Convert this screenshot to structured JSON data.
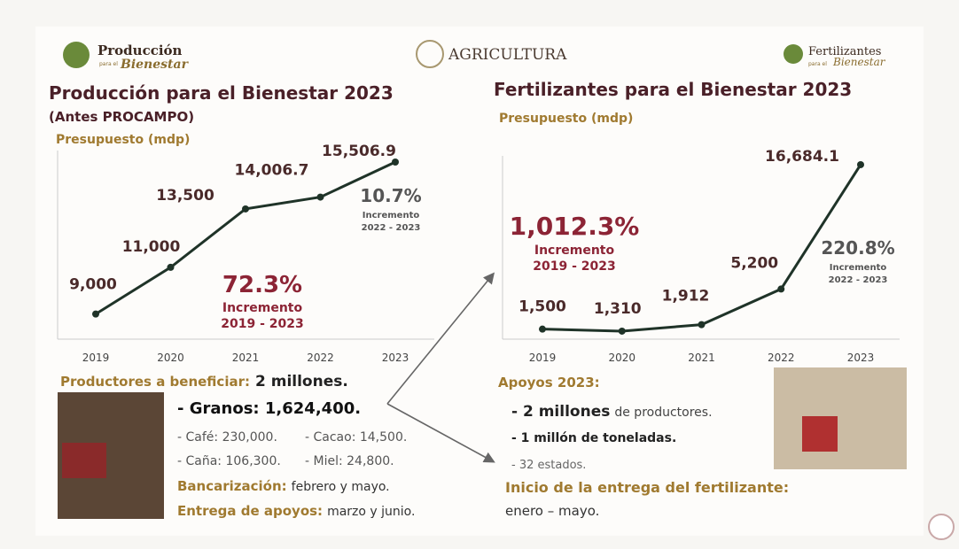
{
  "logos": {
    "left_top": "Producción",
    "left_small": "para el",
    "left_bottom": "Bienestar",
    "center": "AGRICULTURA",
    "right_top": "Fertilizantes",
    "right_small": "para el",
    "right_bottom": "Bienestar"
  },
  "chart_data": [
    {
      "type": "line",
      "title": "Producción para el Bienestar 2023",
      "subtitle": "(Antes PROCAMPO)",
      "y_label": "Presupuesto (mdp)",
      "categories": [
        "2019",
        "2020",
        "2021",
        "2022",
        "2023"
      ],
      "values": [
        9000,
        11000,
        13500,
        14006.7,
        15506.9
      ],
      "value_labels": [
        "9,000",
        "11,000",
        "13,500",
        "14,006.7",
        "15,506.9"
      ],
      "color": "#1f3328",
      "ylim": [
        8000,
        16000
      ],
      "annotations": [
        {
          "value": "72.3%",
          "label": "Incremento",
          "period": "2019 - 2023"
        },
        {
          "value": "10.7%",
          "label": "Incremento",
          "period": "2022 - 2023"
        }
      ]
    },
    {
      "type": "line",
      "title": "Fertilizantes para el Bienestar 2023",
      "y_label": "Presupuesto (mdp)",
      "categories": [
        "2019",
        "2020",
        "2021",
        "2022",
        "2023"
      ],
      "values": [
        1500,
        1310,
        1912,
        5200,
        16684.1
      ],
      "value_labels": [
        "1,500",
        "1,310",
        "1,912",
        "5,200",
        "16,684.1"
      ],
      "color": "#1f3328",
      "ylim": [
        0,
        17500
      ],
      "annotations": [
        {
          "value": "1,012.3%",
          "label": "Incremento",
          "period": "2019 - 2023"
        },
        {
          "value": "220.8%",
          "label": "Incremento",
          "period": "2022 - 2023"
        }
      ]
    }
  ],
  "left_info": {
    "heading": "Productores a beneficiar:",
    "heading_value": "2 millones.",
    "granos": "- Granos: 1,624,400.",
    "cafe": "- Café: 230,000.",
    "cacao": "- Cacao: 14,500.",
    "cana": "- Caña: 106,300.",
    "miel": "- Miel: 24,800.",
    "bancarizacion_label": "Bancarización:",
    "bancarizacion_value": "febrero y mayo.",
    "entrega_label": "Entrega de apoyos:",
    "entrega_value": "marzo y junio."
  },
  "right_info": {
    "heading": "Apoyos 2023:",
    "item1_bold": "- 2 millones",
    "item1_rest": "de productores.",
    "item2": "- 1 millón de toneladas.",
    "item3": "- 32 estados.",
    "inicio_label": "Inicio de la entrega del fertilizante:",
    "inicio_value": "enero – mayo."
  }
}
